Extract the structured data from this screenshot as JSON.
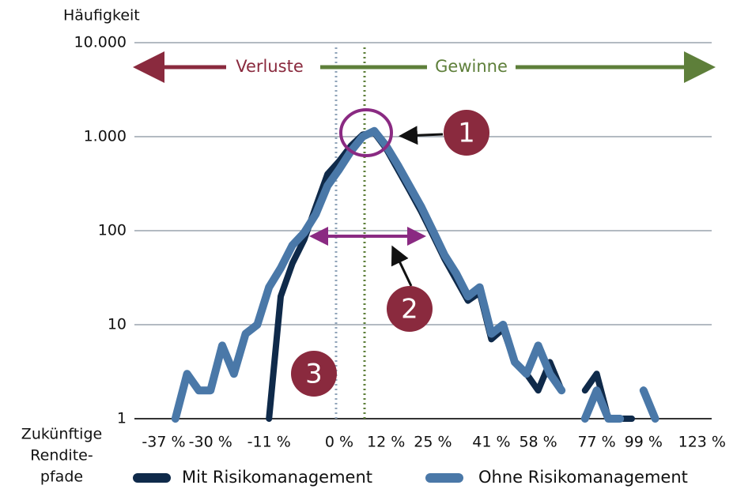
{
  "chart_data": {
    "type": "line",
    "y_label": "Häufigkeit",
    "x_label_lines": [
      "Zukünftige",
      "Rendite-",
      "pfade"
    ],
    "annotations": {
      "losses": "Verluste",
      "gains": "Gewinne",
      "badges": [
        "1",
        "2",
        "3"
      ]
    },
    "log_scale": true,
    "grid": true,
    "ylim": [
      1,
      10000
    ],
    "yticks": [
      1,
      10,
      100,
      {
        "value": 1000,
        "label": "1.000"
      },
      {
        "value": 10000,
        "label": "10.000"
      }
    ],
    "categories": [
      null,
      null,
      "-37 %",
      null,
      null,
      null,
      "-30 %",
      null,
      null,
      null,
      null,
      "-11 %",
      null,
      null,
      null,
      null,
      null,
      "0 %",
      null,
      null,
      null,
      "12 %",
      null,
      null,
      null,
      "25 %",
      null,
      null,
      null,
      null,
      "41 %",
      null,
      null,
      null,
      "58 %",
      null,
      null,
      null,
      null,
      "77 %",
      null,
      null,
      null,
      "99 %",
      null,
      null,
      null,
      null,
      "123 %",
      null
    ],
    "series": [
      {
        "name": "Mit Risikomanagement",
        "color": "#0f2a4a",
        "values": [
          null,
          null,
          null,
          null,
          null,
          null,
          null,
          null,
          null,
          null,
          null,
          1,
          20,
          45,
          80,
          180,
          400,
          550,
          800,
          1050,
          1100,
          750,
          450,
          270,
          160,
          90,
          50,
          30,
          18,
          22,
          7,
          9,
          4,
          3,
          2,
          4,
          2,
          null,
          2,
          3,
          1,
          1,
          1,
          null,
          null,
          null,
          null,
          null,
          null,
          null
        ]
      },
      {
        "name": "Ohne Risikomanagement",
        "color": "#4a78a8",
        "values": [
          null,
          null,
          null,
          1,
          3,
          2,
          2,
          6,
          3,
          8,
          10,
          25,
          40,
          70,
          95,
          150,
          300,
          450,
          700,
          1000,
          1150,
          800,
          500,
          300,
          180,
          100,
          55,
          35,
          20,
          25,
          8,
          10,
          4,
          3,
          6,
          3,
          2,
          null,
          1,
          2,
          1,
          1,
          null,
          2,
          1,
          null,
          null,
          null,
          null,
          null
        ]
      }
    ]
  }
}
